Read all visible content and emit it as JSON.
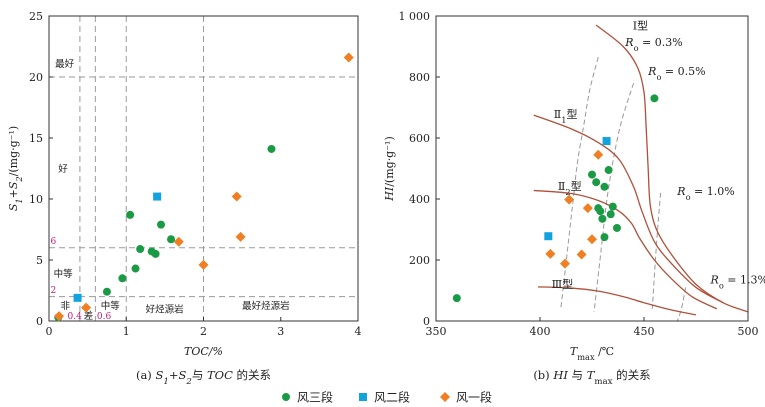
{
  "colors": {
    "s3": "#1a9a45",
    "s2": "#12a2e0",
    "s1": "#ef7f22",
    "axis": "#333333",
    "grid": "#9a9a9a",
    "curve": "#b0503a",
    "roLine": "#999999",
    "magenta": "#c2187a"
  },
  "legend": [
    {
      "label": "风三段",
      "key": "s3",
      "shape": "circle"
    },
    {
      "label": "风二段",
      "key": "s2",
      "shape": "square"
    },
    {
      "label": "风一段",
      "key": "s1",
      "shape": "diamond"
    }
  ],
  "chart_data": [
    {
      "type": "scatter",
      "caption": "(a) S1+S2与TOC的关系",
      "xlabel": "TOC/%",
      "ylabel": "S1+S2/(mg·g⁻¹)",
      "xlim": [
        0,
        4
      ],
      "ylim": [
        0,
        25
      ],
      "xticks": [
        "0",
        "1",
        "2",
        "3",
        "4"
      ],
      "yticks": [
        "0",
        "5",
        "10",
        "15",
        "20",
        "25"
      ],
      "vlines": [
        0.4,
        0.6,
        1,
        2
      ],
      "hlines": [
        2,
        6,
        20
      ],
      "zone_labels": [
        {
          "text": "最好",
          "x": 0.08,
          "y": 20.8
        },
        {
          "text": "好",
          "x": 0.12,
          "y": 12.2
        },
        {
          "text": "中等",
          "x": 0.06,
          "y": 3.6
        },
        {
          "text": "非",
          "x": 0.15,
          "y": 1.0
        },
        {
          "text": "差",
          "x": 0.45,
          "y": 0.15
        },
        {
          "text": "中等",
          "x": 0.67,
          "y": 1.0
        },
        {
          "text": "好烃源岩",
          "x": 1.25,
          "y": 0.7
        },
        {
          "text": "最好烃源岩",
          "x": 2.5,
          "y": 1.0
        }
      ],
      "threshold_labels": [
        {
          "text": "6",
          "x": 0.02,
          "y": 6.3
        },
        {
          "text": "2",
          "x": 0.02,
          "y": 2.3
        },
        {
          "text": "0.4",
          "x": 0.24,
          "y": 0.15
        },
        {
          "text": "0.6",
          "x": 0.62,
          "y": 0.15
        }
      ],
      "series": [
        {
          "name": "风三段",
          "key": "s3",
          "points": [
            [
              0.12,
              0.3
            ],
            [
              0.75,
              2.4
            ],
            [
              0.95,
              3.5
            ],
            [
              1.05,
              8.7
            ],
            [
              1.12,
              4.3
            ],
            [
              1.18,
              5.9
            ],
            [
              1.33,
              5.7
            ],
            [
              1.38,
              5.5
            ],
            [
              1.45,
              7.9
            ],
            [
              1.58,
              6.7
            ],
            [
              2.88,
              14.1
            ]
          ]
        },
        {
          "name": "风二段",
          "key": "s2",
          "points": [
            [
              0.37,
              1.9
            ],
            [
              1.4,
              10.2
            ]
          ]
        },
        {
          "name": "风一段",
          "key": "s1",
          "points": [
            [
              0.13,
              0.4
            ],
            [
              0.48,
              1.1
            ],
            [
              1.68,
              6.5
            ],
            [
              2.0,
              4.6
            ],
            [
              2.43,
              10.2
            ],
            [
              2.48,
              6.9
            ],
            [
              3.88,
              21.6
            ]
          ]
        }
      ]
    },
    {
      "type": "scatter",
      "caption": "(b) HI与Tmax的关系",
      "xlabel": "Tmax/℃",
      "ylabel": "HI/(mg·g⁻¹)",
      "xlim": [
        350,
        500
      ],
      "ylim": [
        0,
        1000
      ],
      "xticks": [
        "350",
        "400",
        "450",
        "500"
      ],
      "yticks": [
        "0",
        "200",
        "400",
        "600",
        "800",
        "1 000"
      ],
      "type_curves": [
        {
          "label": "Ⅰ型",
          "label_at": [
            452,
            955
          ],
          "points": [
            [
              427,
              970
            ],
            [
              440,
              900
            ],
            [
              447,
              830
            ],
            [
              450,
              750
            ],
            [
              451,
              640
            ],
            [
              452,
              500
            ],
            [
              453,
              380
            ],
            [
              456,
              300
            ],
            [
              463,
              220
            ],
            [
              475,
              120
            ],
            [
              488,
              60
            ],
            [
              500,
              30
            ]
          ]
        },
        {
          "label": "Ⅱ₁型",
          "label_at": [
            418,
            665
          ],
          "points": [
            [
              397,
              675
            ],
            [
              415,
              630
            ],
            [
              428,
              585
            ],
            [
              438,
              530
            ],
            [
              445,
              440
            ],
            [
              449,
              360
            ],
            [
              455,
              260
            ],
            [
              463,
              190
            ],
            [
              475,
              110
            ],
            [
              488,
              60
            ]
          ]
        },
        {
          "label": "Ⅱ₂型",
          "label_at": [
            420,
            430
          ],
          "points": [
            [
              397,
              428
            ],
            [
              415,
              418
            ],
            [
              428,
              395
            ],
            [
              438,
              360
            ],
            [
              444,
              320
            ],
            [
              448,
              270
            ],
            [
              455,
              200
            ],
            [
              463,
              140
            ],
            [
              473,
              80
            ],
            [
              485,
              40
            ]
          ]
        },
        {
          "label": "Ⅲ型",
          "label_at": [
            416,
            108
          ],
          "points": [
            [
              399,
              112
            ],
            [
              415,
              108
            ],
            [
              428,
              98
            ],
            [
              440,
              80
            ],
            [
              450,
              60
            ],
            [
              462,
              38
            ],
            [
              475,
              20
            ]
          ]
        }
      ],
      "ro_lines": [
        {
          "label": "Ro=0.3%",
          "label_at": [
            441,
            902
          ],
          "points": [
            [
              428,
              865
            ],
            [
              424,
              760
            ],
            [
              421,
              640
            ],
            [
              418,
              520
            ],
            [
              416,
              400
            ],
            [
              414,
              280
            ],
            [
              412,
              160
            ],
            [
              410,
              40
            ]
          ]
        },
        {
          "label": "Ro=0.5%",
          "label_at": [
            452,
            807
          ],
          "points": [
            [
              445,
              780
            ],
            [
              439,
              650
            ],
            [
              435,
              520
            ],
            [
              432,
              390
            ],
            [
              430,
              270
            ],
            [
              428,
              150
            ],
            [
              426,
              30
            ]
          ]
        },
        {
          "label": "Ro=1.0%",
          "label_at": [
            466,
            413
          ],
          "points": [
            [
              458,
              420
            ],
            [
              457,
              340
            ],
            [
              456,
              250
            ],
            [
              455,
              150
            ],
            [
              454,
              40
            ]
          ]
        },
        {
          "label": "Ro=1.3%",
          "label_at": [
            482,
            123
          ],
          "points": [
            [
              470,
              110
            ],
            [
              468,
              40
            ],
            [
              466,
              0
            ]
          ]
        }
      ],
      "series": [
        {
          "name": "风三段",
          "key": "s3",
          "points": [
            [
              360,
              75
            ],
            [
              425,
              480
            ],
            [
              427,
              455
            ],
            [
              428,
              370
            ],
            [
              429,
              360
            ],
            [
              430,
              335
            ],
            [
              431,
              275
            ],
            [
              431,
              440
            ],
            [
              433,
              495
            ],
            [
              434,
              350
            ],
            [
              435,
              375
            ],
            [
              437,
              305
            ],
            [
              455,
              730
            ]
          ]
        },
        {
          "name": "风二段",
          "key": "s2",
          "points": [
            [
              404,
              278
            ],
            [
              432,
              590
            ]
          ]
        },
        {
          "name": "风一段",
          "key": "s1",
          "points": [
            [
              405,
              220
            ],
            [
              412,
              188
            ],
            [
              414,
              398
            ],
            [
              420,
              218
            ],
            [
              423,
              370
            ],
            [
              425,
              268
            ],
            [
              428,
              545
            ]
          ]
        }
      ]
    }
  ]
}
